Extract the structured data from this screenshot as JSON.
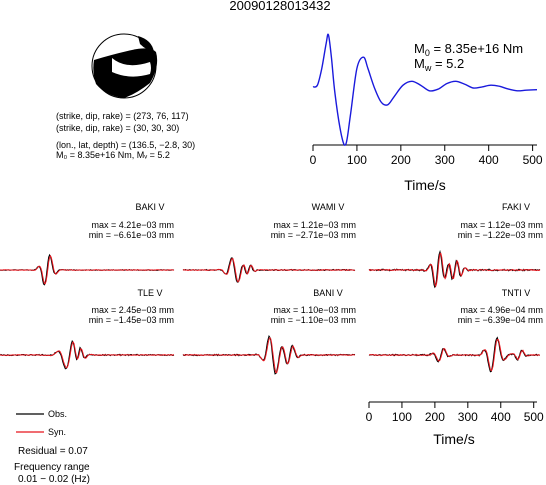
{
  "title": "20090128013432",
  "colors": {
    "obs": "#000000",
    "syn": "#e8141c",
    "stf": "#1a1adc",
    "beachball_fill": "#000000"
  },
  "focal": {
    "line1": "(strike, dip, rake) = (273, 76, 117)",
    "line2": "(strike, dip, rake) = (30, 30, 30)",
    "line3": "(lon., lat, depth) = (136.5, −2.8, 30)",
    "line4": "M₀ = 8.35e+16 Nm, Mᵥ = 5.2"
  },
  "stf": {
    "m0_label": "M",
    "m0_sub": "0",
    "m0_value": " = 8.35e+16 Nm",
    "mw_label": "M",
    "mw_sub": "w",
    "mw_value": " = 5.2",
    "xlabel": "Time/s",
    "xticks": [
      0,
      100,
      200,
      300,
      400,
      500
    ]
  },
  "legend": {
    "obs": "Obs.",
    "syn": "Syn."
  },
  "residual": "Residual = 0.07",
  "freq_label": "Frequency range",
  "freq_value": "0.01 − 0.02 (Hz)",
  "bottom_axis": {
    "xlabel": "Time/s",
    "xticks": [
      0,
      100,
      200,
      300,
      400,
      500
    ]
  },
  "stations": [
    {
      "name": "BAKI V",
      "max": "max = 4.21e−03 mm",
      "min": "min = −6.61e−03 mm"
    },
    {
      "name": "WAMI V",
      "max": "max = 1.21e−03 mm",
      "min": "min = −2.71e−03 mm"
    },
    {
      "name": "FAKI V",
      "max": "max = 1.12e−03 mm",
      "min": "min = −1.22e−03 mm"
    },
    {
      "name": "TLE V",
      "max": "max = 2.45e−03 mm",
      "min": "min = −1.45e−03 mm"
    },
    {
      "name": "BANI V",
      "max": "max = 1.10e−03 mm",
      "min": "min = −1.10e−03 mm"
    },
    {
      "name": "TNTI V",
      "max": "max = 4.96e−04 mm",
      "min": "min = −6.39e−04 mm"
    }
  ],
  "chart_data": [
    {
      "type": "line",
      "xlabel": "Time/s",
      "xlim": [
        0,
        510
      ],
      "series": [
        {
          "values": [
            [
              0,
              0.02
            ],
            [
              10,
              0.05
            ],
            [
              20,
              0.35
            ],
            [
              30,
              0.8
            ],
            [
              35,
              0.95
            ],
            [
              42,
              0.55
            ],
            [
              50,
              -0.1
            ],
            [
              65,
              -0.85
            ],
            [
              75,
              -1.0
            ],
            [
              85,
              -0.5
            ],
            [
              100,
              0.35
            ],
            [
              115,
              0.55
            ],
            [
              125,
              0.35
            ],
            [
              140,
              0.0
            ],
            [
              155,
              -0.25
            ],
            [
              170,
              -0.3
            ],
            [
              185,
              -0.15
            ],
            [
              205,
              0.05
            ],
            [
              225,
              0.12
            ],
            [
              245,
              0.05
            ],
            [
              265,
              -0.05
            ],
            [
              285,
              -0.02
            ],
            [
              305,
              0.08
            ],
            [
              325,
              0.12
            ],
            [
              345,
              0.07
            ],
            [
              365,
              0.0
            ],
            [
              385,
              0.02
            ],
            [
              405,
              0.05
            ],
            [
              425,
              0.03
            ],
            [
              445,
              -0.02
            ],
            [
              465,
              -0.05
            ],
            [
              485,
              -0.04
            ],
            [
              510,
              -0.03
            ]
          ]
        }
      ]
    }
  ]
}
